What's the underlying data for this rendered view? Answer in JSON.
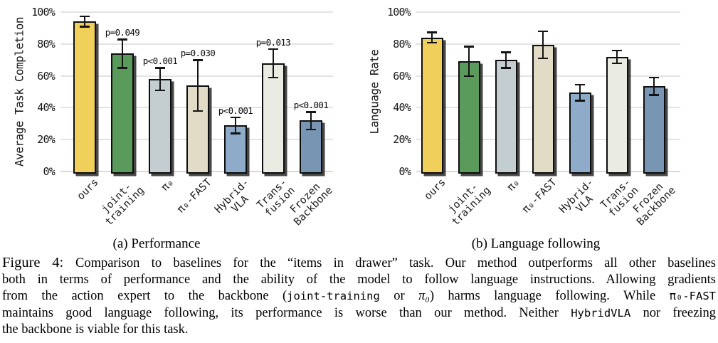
{
  "chart_data": [
    {
      "type": "bar",
      "title": "(a) Performance",
      "ylabel": "Average Task Completion",
      "ylim": [
        0,
        100
      ],
      "grid": true,
      "legend": "none",
      "yticks": [
        "0%",
        "20%",
        "40%",
        "60%",
        "80%",
        "100%"
      ],
      "categories": [
        "ours",
        "joint-\ntraining",
        "π₀",
        "π₀-FAST",
        "Hybrid-\nVLA",
        "Trans-\nfusion",
        "Frozen\nBackbone"
      ],
      "values": [
        94,
        74,
        58,
        54,
        29,
        68,
        32
      ],
      "error_low": [
        91,
        65,
        51,
        38,
        24,
        59,
        26.5
      ],
      "error_high": [
        97.5,
        83,
        65,
        70,
        34,
        77,
        37.5
      ],
      "p_labels": [
        "",
        "p=0.049",
        "p<0.001",
        "p=0.030",
        "p<0.001",
        "p=0.013",
        "p<0.001"
      ],
      "bar_colors": [
        "#F1CF5B",
        "#5A9B5C",
        "#C4CED1",
        "#E2DCC7",
        "#8EACC9",
        "#EAEBE3",
        "#7896B3"
      ]
    },
    {
      "type": "bar",
      "title": "(b) Language following",
      "ylabel": "Language Rate",
      "ylim": [
        0,
        100
      ],
      "grid": true,
      "legend": "none",
      "yticks": [
        "0%",
        "20%",
        "40%",
        "60%",
        "80%",
        "100%"
      ],
      "categories": [
        "ours",
        "joint-\ntraining",
        "π₀",
        "π₀-FAST",
        "Hybrid-\nVLA",
        "Trans-\nfusion",
        "Frozen\nBackbone"
      ],
      "values": [
        84,
        69,
        70,
        79.5,
        49.5,
        72,
        53.5
      ],
      "error_low": [
        81,
        60,
        65,
        71,
        44.5,
        68,
        48
      ],
      "error_high": [
        87.5,
        78.5,
        75,
        88,
        54.5,
        76,
        59
      ],
      "p_labels": [
        "",
        "",
        "",
        "",
        "",
        "",
        ""
      ],
      "bar_colors": [
        "#F1CF5B",
        "#5A9B5C",
        "#C4CED1",
        "#E2DCC7",
        "#8EACC9",
        "#EAEBE3",
        "#7896B3"
      ]
    }
  ],
  "caption": {
    "lines": [
      [
        {
          "t": "Figure 4: ",
          "s": "big"
        },
        {
          "t": "Comparison to baselines for the “items in drawer” task. Our method outperforms all other baselines",
          "s": "serif"
        }
      ],
      [
        {
          "t": "both in terms of performance and the ability of the model to follow language instructions. Allowing gradients",
          "s": "serif"
        }
      ],
      [
        {
          "t": "from the action expert to the backbone (",
          "s": "serif"
        },
        {
          "t": "joint-training",
          "s": "mono"
        },
        {
          "t": " or ",
          "s": "serif"
        },
        {
          "t": "π₀",
          "s": "math"
        },
        {
          "t": ") harms language following. While ",
          "s": "serif"
        },
        {
          "t": "π₀-FAST",
          "s": "mono"
        }
      ],
      [
        {
          "t": "maintains good language following, its performance is worse than our method. Neither ",
          "s": "serif"
        },
        {
          "t": "HybridVLA",
          "s": "mono"
        },
        {
          "t": " nor freezing",
          "s": "serif"
        }
      ],
      [
        {
          "t": "the backbone is viable for this task.",
          "s": "serif"
        }
      ]
    ]
  }
}
